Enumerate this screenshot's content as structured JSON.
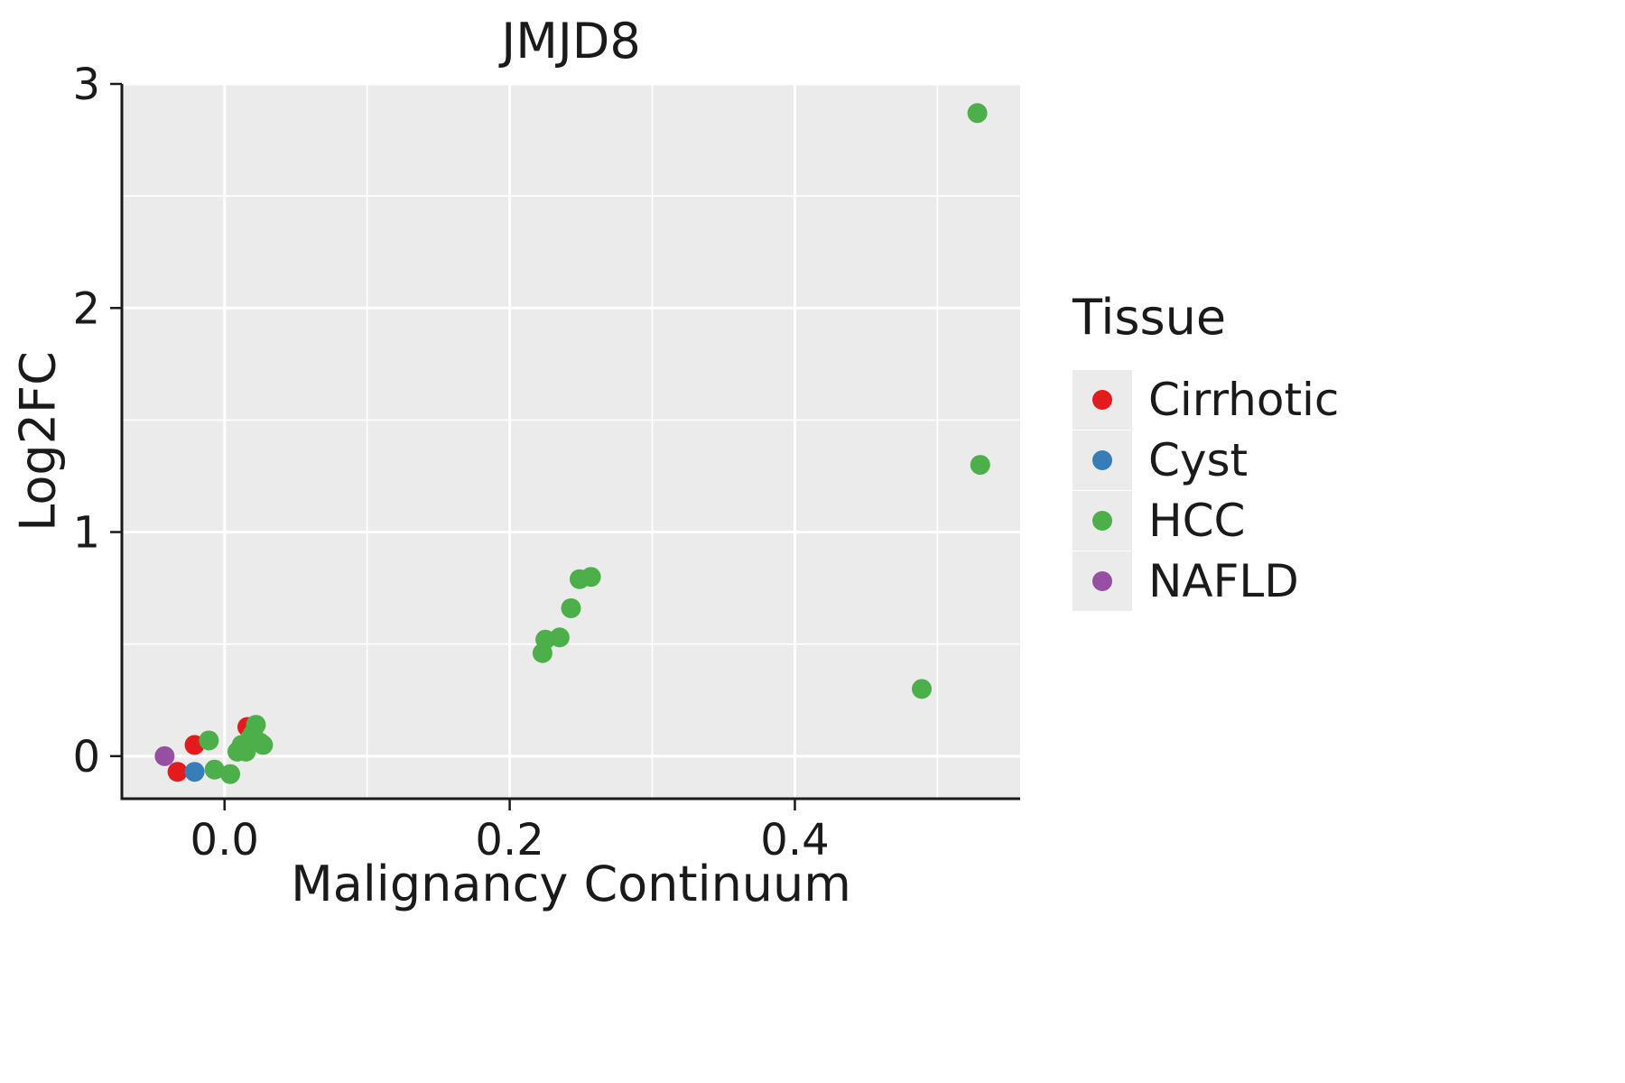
{
  "chart_data": {
    "type": "scatter",
    "title": "JMJD8",
    "xlabel": "Malignancy Continuum",
    "ylabel": "Log2FC",
    "xlim": [
      -0.072,
      0.558
    ],
    "ylim": [
      -0.19,
      3.0
    ],
    "x_ticks": [
      {
        "value": 0.0,
        "label": "0.0"
      },
      {
        "value": 0.2,
        "label": "0.2"
      },
      {
        "value": 0.4,
        "label": "0.4"
      }
    ],
    "y_ticks": [
      {
        "value": 0,
        "label": "0"
      },
      {
        "value": 1,
        "label": "1"
      },
      {
        "value": 2,
        "label": "2"
      },
      {
        "value": 3,
        "label": "3"
      }
    ],
    "x_minor_ticks": [
      0.1,
      0.3,
      0.5
    ],
    "y_minor_ticks": [
      0.5,
      1.5,
      2.5
    ],
    "panel_bg": "#EBEBEB",
    "grid_color": "#FFFFFF",
    "axis_color": "#1a1a1a",
    "legend": {
      "title": "Tissue",
      "entries": [
        {
          "label": "Cirrhotic",
          "color": "#E41A1C"
        },
        {
          "label": "Cyst",
          "color": "#377EB8"
        },
        {
          "label": "HCC",
          "color": "#4DAF4A"
        },
        {
          "label": "NAFLD",
          "color": "#984EA3"
        }
      ]
    },
    "series": [
      {
        "name": "Cirrhotic",
        "color": "#E41A1C",
        "points": [
          [
            -0.033,
            -0.07
          ],
          [
            -0.021,
            0.05
          ],
          [
            0.016,
            0.13
          ]
        ]
      },
      {
        "name": "Cyst",
        "color": "#377EB8",
        "points": [
          [
            -0.021,
            -0.07
          ]
        ]
      },
      {
        "name": "HCC",
        "color": "#4DAF4A",
        "points": [
          [
            -0.011,
            0.07
          ],
          [
            -0.007,
            -0.06
          ],
          [
            0.004,
            -0.08
          ],
          [
            0.009,
            0.02
          ],
          [
            0.012,
            0.05
          ],
          [
            0.015,
            0.02
          ],
          [
            0.018,
            0.08
          ],
          [
            0.02,
            0.1
          ],
          [
            0.022,
            0.14
          ],
          [
            0.025,
            0.06
          ],
          [
            0.027,
            0.05
          ],
          [
            0.223,
            0.46
          ],
          [
            0.225,
            0.52
          ],
          [
            0.235,
            0.53
          ],
          [
            0.243,
            0.66
          ],
          [
            0.249,
            0.79
          ],
          [
            0.257,
            0.8
          ],
          [
            0.489,
            0.3
          ],
          [
            0.528,
            2.87
          ],
          [
            0.53,
            1.3
          ]
        ]
      },
      {
        "name": "NAFLD",
        "color": "#984EA3",
        "points": [
          [
            -0.042,
            0.0
          ]
        ]
      }
    ]
  }
}
